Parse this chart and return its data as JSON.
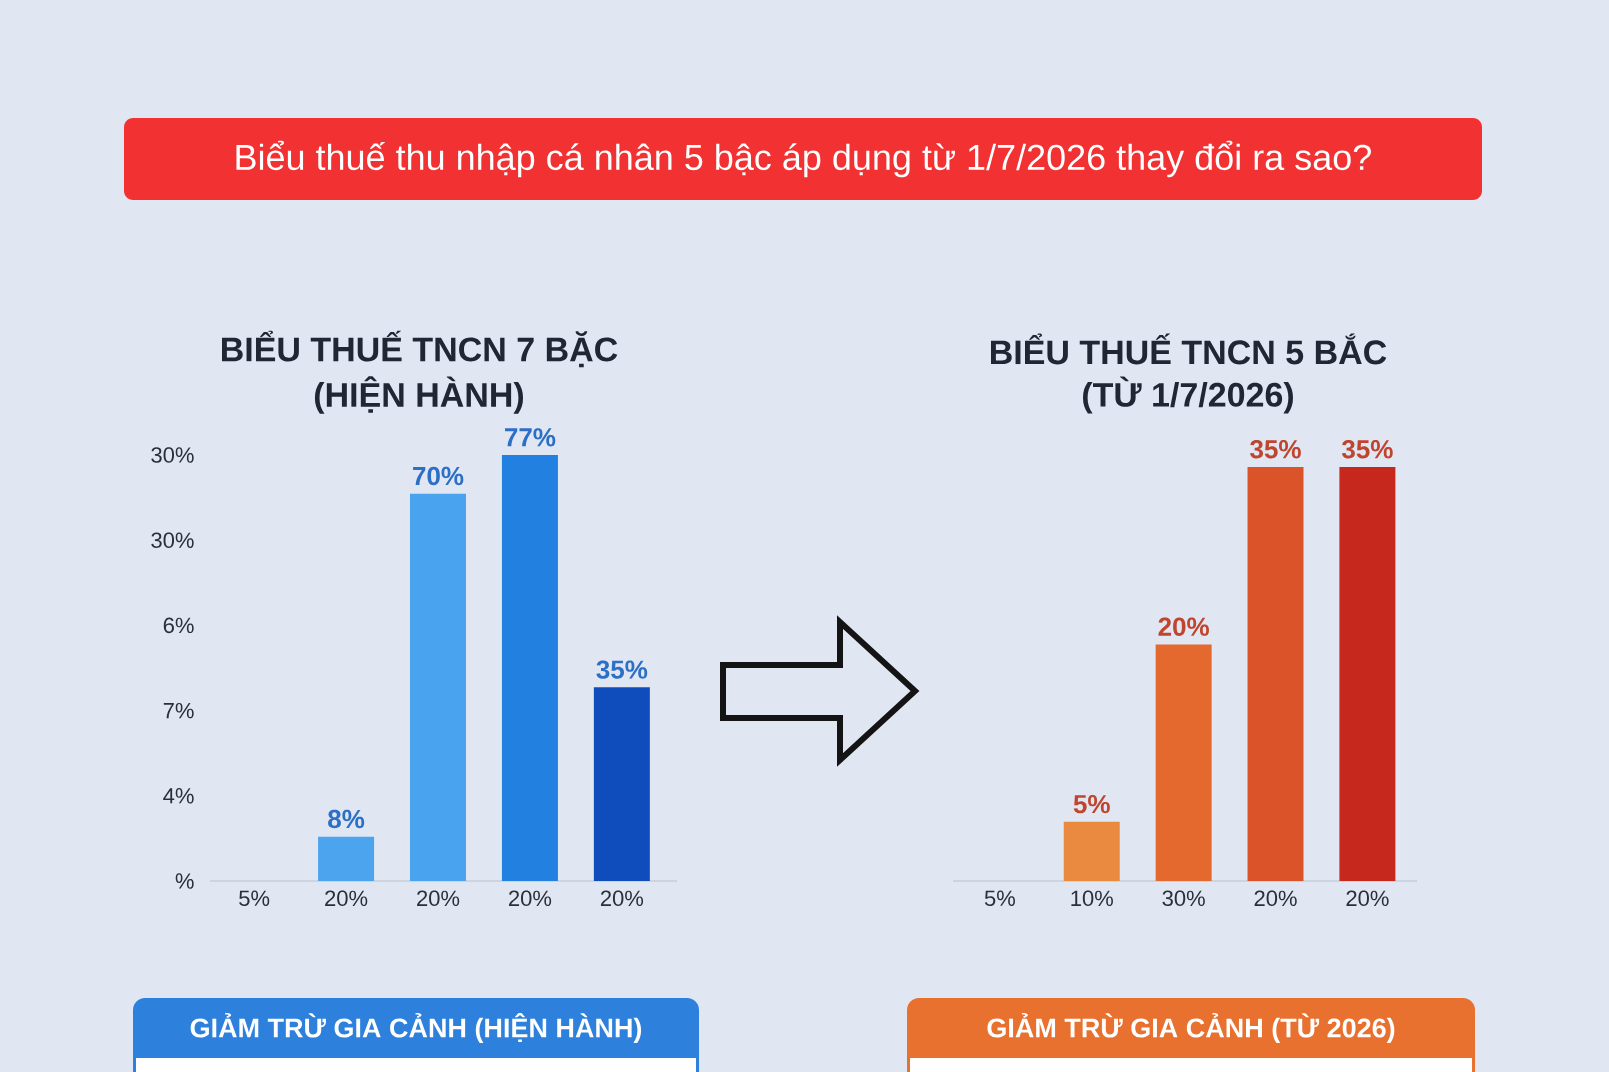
{
  "chart_data": [
    {
      "type": "other",
      "title": "Biểu thuế thu nhập cá nhân 5 bậc áp dụng từ 1/7/2026 thay đổi ra sao?"
    },
    {
      "type": "bar",
      "title": "BIỂU THUẾ TNCN 7 BẶC",
      "subtitle": "(HIỆN HÀNH)",
      "categories": [
        "5%",
        "20%",
        "20%",
        "20%",
        "20%"
      ],
      "values": [
        null,
        8,
        70,
        77,
        35
      ],
      "colors": [
        null,
        "#4ca4ef",
        "#4aa3ee",
        "#2281e0",
        "#0f4dbd"
      ],
      "value_labels": [
        null,
        "8%",
        "70%",
        "77%",
        "35%"
      ],
      "annotations": [
        "30%",
        "30%",
        "6%",
        "7%",
        "4%",
        "%"
      ]
    },
    {
      "type": "bar",
      "title": "BIỂU THUẾ TNCN 5 BẮC",
      "subtitle": "(TỪ 1/7/2026)",
      "categories": [
        "5%",
        "10%",
        "30%",
        "20%",
        "20%"
      ],
      "values": [
        null,
        5,
        20,
        35,
        35
      ],
      "colors": [
        null,
        "#e98a40",
        "#e3692e",
        "#db5429",
        "#c7281d"
      ],
      "value_labels": [
        null,
        "5%",
        "20%",
        "35%",
        "35%"
      ]
    },
    {
      "type": "other",
      "title": "GIẢM TRỪ GIA CẢNH (HIỆN HÀNH)"
    },
    {
      "type": "other",
      "title": "GIẢM TRỪ GIA CẢNH (TỪ 2026)"
    }
  ]
}
